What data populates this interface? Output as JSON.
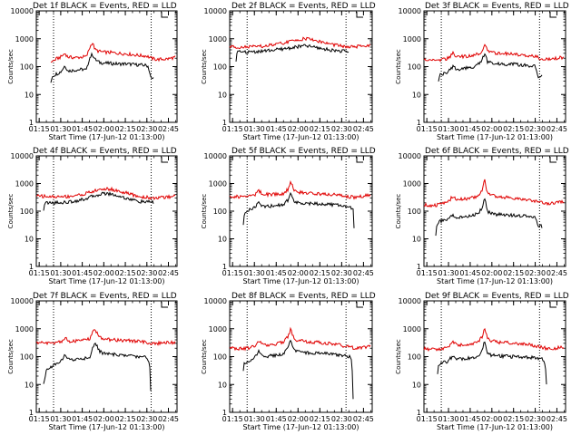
{
  "figure": {
    "panel_axis": {
      "xlabel": "Start Time (17-Jun-12 01:13:00)",
      "ylabel": "Counts/sec",
      "x_tick_labels": [
        "01:15",
        "01:30",
        "01:45",
        "02:00",
        "02:15",
        "02:30",
        "02:45"
      ],
      "y_tick_labels": [
        "1",
        "10",
        "100",
        "1000",
        "10000"
      ]
    },
    "colors": {
      "events": "#000000",
      "lld": "#e00000"
    }
  },
  "chart_data": [
    {
      "type": "line",
      "title": "Det 1f BLACK = Events, RED = LLD",
      "xlabel": "Start Time (17-Jun-12 01:13:00)",
      "ylabel": "Counts/sec",
      "xlim": [
        "01:13",
        "02:51"
      ],
      "ylim": [
        1,
        10000
      ],
      "yscale": "log",
      "vlines": [
        "01:25",
        "02:33"
      ],
      "series": [
        {
          "name": "Events",
          "color": "#000000",
          "x": [
            "01:23",
            "01:24",
            "01:27",
            "01:30",
            "01:33",
            "01:35",
            "01:40",
            "01:45",
            "01:48",
            "01:50",
            "01:52",
            "01:54",
            "01:57",
            "02:00",
            "02:05",
            "02:10",
            "02:15",
            "02:20",
            "02:25",
            "02:30",
            "02:31",
            "02:33",
            "02:35"
          ],
          "y": [
            25,
            45,
            55,
            65,
            110,
            70,
            75,
            80,
            75,
            200,
            280,
            180,
            140,
            135,
            130,
            125,
            125,
            120,
            115,
            110,
            100,
            35,
            40
          ]
        },
        {
          "name": "LLD",
          "color": "#e00000",
          "x": [
            "01:23",
            "01:25",
            "01:27",
            "01:30",
            "01:33",
            "01:35",
            "01:40",
            "01:45",
            "01:48",
            "01:50",
            "01:52",
            "01:54",
            "01:57",
            "02:00",
            "02:05",
            "02:10",
            "02:15",
            "02:20",
            "02:25",
            "02:30",
            "02:33",
            "02:37",
            "02:45",
            "02:50"
          ],
          "y": [
            150,
            160,
            190,
            220,
            300,
            220,
            210,
            220,
            230,
            450,
            750,
            400,
            350,
            330,
            320,
            300,
            290,
            270,
            250,
            240,
            200,
            180,
            190,
            220
          ]
        }
      ]
    },
    {
      "type": "line",
      "title": "Det 2f BLACK = Events, RED = LLD",
      "xlabel": "Start Time (17-Jun-12 01:13:00)",
      "ylabel": "Counts/sec",
      "xlim": [
        "01:13",
        "02:51"
      ],
      "ylim": [
        1,
        10000
      ],
      "yscale": "log",
      "vlines": [
        "01:25",
        "02:33"
      ],
      "series": [
        {
          "name": "Events",
          "color": "#000000",
          "x": [
            "01:17",
            "01:18",
            "01:25",
            "01:35",
            "01:45",
            "01:55",
            "02:00",
            "02:05",
            "02:10",
            "02:20",
            "02:30",
            "02:35"
          ],
          "y": [
            100,
            330,
            330,
            360,
            400,
            470,
            520,
            560,
            510,
            410,
            360,
            350
          ]
        },
        {
          "name": "LLD",
          "color": "#e00000",
          "x": [
            "01:13",
            "01:25",
            "01:35",
            "01:45",
            "01:55",
            "02:00",
            "02:05",
            "02:10",
            "02:20",
            "02:30",
            "02:35",
            "02:45",
            "02:50"
          ],
          "y": [
            520,
            500,
            530,
            620,
            800,
            920,
            1020,
            920,
            680,
            540,
            500,
            540,
            620
          ]
        }
      ]
    },
    {
      "type": "line",
      "title": "Det 3f BLACK = Events, RED = LLD",
      "xlabel": "Start Time (17-Jun-12 01:13:00)",
      "ylabel": "Counts/sec",
      "xlim": [
        "01:13",
        "02:51"
      ],
      "ylim": [
        1,
        10000
      ],
      "yscale": "log",
      "vlines": [
        "01:25",
        "02:33"
      ],
      "series": [
        {
          "name": "Events",
          "color": "#000000",
          "x": [
            "01:23",
            "01:24",
            "01:27",
            "01:30",
            "01:33",
            "01:36",
            "01:40",
            "01:45",
            "01:50",
            "01:53",
            "01:55",
            "01:57",
            "02:00",
            "02:05",
            "02:15",
            "02:25",
            "02:30",
            "02:32",
            "02:35"
          ],
          "y": [
            30,
            50,
            55,
            65,
            100,
            80,
            85,
            90,
            110,
            170,
            300,
            150,
            130,
            125,
            120,
            110,
            100,
            40,
            45
          ]
        },
        {
          "name": "LLD",
          "color": "#e00000",
          "x": [
            "01:13",
            "01:20",
            "01:25",
            "01:30",
            "01:33",
            "01:36",
            "01:40",
            "01:45",
            "01:50",
            "01:53",
            "01:55",
            "01:57",
            "02:00",
            "02:05",
            "02:15",
            "02:25",
            "02:30",
            "02:33",
            "02:40",
            "02:50"
          ],
          "y": [
            180,
            170,
            175,
            200,
            300,
            230,
            230,
            250,
            280,
            350,
            700,
            380,
            320,
            300,
            280,
            250,
            230,
            200,
            180,
            220
          ]
        }
      ]
    },
    {
      "type": "line",
      "title": "Det 4f BLACK = Events, RED = LLD",
      "xlabel": "Start Time (17-Jun-12 01:13:00)",
      "ylabel": "Counts/sec",
      "xlim": [
        "01:13",
        "02:51"
      ],
      "ylim": [
        1,
        10000
      ],
      "yscale": "log",
      "vlines": [
        "01:25",
        "02:33"
      ],
      "series": [
        {
          "name": "Events",
          "color": "#000000",
          "x": [
            "01:18",
            "01:19",
            "01:25",
            "01:35",
            "01:45",
            "01:55",
            "02:00",
            "02:05",
            "02:15",
            "02:25",
            "02:35"
          ],
          "y": [
            110,
            200,
            200,
            210,
            260,
            380,
            440,
            420,
            300,
            220,
            210
          ]
        },
        {
          "name": "LLD",
          "color": "#e00000",
          "x": [
            "01:13",
            "01:20",
            "01:25",
            "01:35",
            "01:45",
            "01:55",
            "02:00",
            "02:05",
            "02:15",
            "02:25",
            "02:35",
            "02:45",
            "02:50"
          ],
          "y": [
            360,
            340,
            330,
            340,
            400,
            560,
            640,
            620,
            460,
            330,
            300,
            320,
            400
          ]
        }
      ]
    },
    {
      "type": "line",
      "title": "Det 5f BLACK = Events, RED = LLD",
      "xlabel": "Start Time (17-Jun-12 01:13:00)",
      "ylabel": "Counts/sec",
      "xlim": [
        "01:13",
        "02:51"
      ],
      "ylim": [
        1,
        10000
      ],
      "yscale": "log",
      "vlines": [
        "01:25",
        "02:33"
      ],
      "series": [
        {
          "name": "Events",
          "color": "#000000",
          "x": [
            "01:22",
            "01:23",
            "01:26",
            "01:30",
            "01:33",
            "01:36",
            "01:40",
            "01:45",
            "01:50",
            "01:53",
            "01:55",
            "01:57",
            "02:00",
            "02:05",
            "02:15",
            "02:25",
            "02:30",
            "02:35",
            "02:38",
            "02:39"
          ],
          "y": [
            25,
            70,
            110,
            140,
            200,
            150,
            150,
            160,
            170,
            250,
            500,
            230,
            200,
            190,
            180,
            170,
            160,
            150,
            120,
            6
          ]
        },
        {
          "name": "LLD",
          "color": "#e00000",
          "x": [
            "01:13",
            "01:20",
            "01:25",
            "01:30",
            "01:33",
            "01:36",
            "01:40",
            "01:45",
            "01:50",
            "01:53",
            "01:55",
            "01:57",
            "02:00",
            "02:05",
            "02:15",
            "02:25",
            "02:30",
            "02:35",
            "02:40",
            "02:50"
          ],
          "y": [
            340,
            330,
            350,
            380,
            560,
            400,
            400,
            410,
            440,
            600,
            1300,
            560,
            480,
            450,
            420,
            390,
            360,
            330,
            320,
            400
          ]
        }
      ]
    },
    {
      "type": "line",
      "title": "Det 6f BLACK = Events, RED = LLD",
      "xlabel": "Start Time (17-Jun-12 01:13:00)",
      "ylabel": "Counts/sec",
      "xlim": [
        "01:13",
        "02:51"
      ],
      "ylim": [
        1,
        10000
      ],
      "yscale": "log",
      "vlines": [
        "01:25",
        "02:33"
      ],
      "series": [
        {
          "name": "Events",
          "color": "#000000",
          "x": [
            "01:21",
            "01:22",
            "01:25",
            "01:30",
            "01:33",
            "01:36",
            "01:40",
            "01:45",
            "01:50",
            "01:53",
            "01:55",
            "01:57",
            "02:00",
            "02:05",
            "02:15",
            "02:25",
            "02:30",
            "02:32",
            "02:35"
          ],
          "y": [
            10,
            35,
            45,
            55,
            70,
            55,
            60,
            70,
            80,
            120,
            300,
            100,
            80,
            75,
            70,
            65,
            60,
            30,
            28
          ]
        },
        {
          "name": "LLD",
          "color": "#e00000",
          "x": [
            "01:13",
            "01:20",
            "01:25",
            "01:30",
            "01:33",
            "01:36",
            "01:40",
            "01:45",
            "01:50",
            "01:53",
            "01:55",
            "01:57",
            "02:00",
            "02:05",
            "02:15",
            "02:25",
            "02:30",
            "02:35",
            "02:40",
            "02:50"
          ],
          "y": [
            170,
            160,
            180,
            220,
            350,
            260,
            270,
            300,
            350,
            500,
            1300,
            450,
            360,
            330,
            300,
            260,
            230,
            200,
            190,
            230
          ]
        }
      ]
    },
    {
      "type": "line",
      "title": "Det 7f BLACK = Events, RED = LLD",
      "xlabel": "Start Time (17-Jun-12 01:13:00)",
      "ylabel": "Counts/sec",
      "xlim": [
        "01:13",
        "02:51"
      ],
      "ylim": [
        1,
        10000
      ],
      "yscale": "log",
      "vlines": [
        "01:25",
        "02:33"
      ],
      "series": [
        {
          "name": "Events",
          "color": "#000000",
          "x": [
            "01:18",
            "01:20",
            "01:23",
            "01:26",
            "01:30",
            "01:33",
            "01:36",
            "01:40",
            "01:45",
            "01:50",
            "01:52",
            "01:54",
            "01:57",
            "02:00",
            "02:05",
            "02:15",
            "02:25",
            "02:30",
            "02:32",
            "02:33"
          ],
          "y": [
            10,
            35,
            40,
            55,
            70,
            110,
            75,
            80,
            85,
            90,
            200,
            300,
            160,
            130,
            120,
            110,
            100,
            95,
            50,
            2
          ]
        },
        {
          "name": "LLD",
          "color": "#e00000",
          "x": [
            "01:13",
            "01:20",
            "01:25",
            "01:30",
            "01:33",
            "01:36",
            "01:40",
            "01:45",
            "01:50",
            "01:52",
            "01:54",
            "01:57",
            "02:00",
            "02:05",
            "02:15",
            "02:25",
            "02:30",
            "02:35",
            "02:40",
            "02:50"
          ],
          "y": [
            320,
            300,
            310,
            340,
            480,
            360,
            360,
            380,
            420,
            700,
            900,
            520,
            430,
            400,
            380,
            350,
            320,
            300,
            300,
            330
          ]
        }
      ]
    },
    {
      "type": "line",
      "title": "Det 8f BLACK = Events, RED = LLD",
      "xlabel": "Start Time (17-Jun-12 01:13:00)",
      "ylabel": "Counts/sec",
      "xlim": [
        "01:13",
        "02:51"
      ],
      "ylim": [
        1,
        10000
      ],
      "yscale": "log",
      "vlines": [
        "01:25",
        "02:33"
      ],
      "series": [
        {
          "name": "Events",
          "color": "#000000",
          "x": [
            "01:22",
            "01:23",
            "01:26",
            "01:30",
            "01:33",
            "01:36",
            "01:40",
            "01:45",
            "01:50",
            "01:53",
            "01:55",
            "01:57",
            "02:00",
            "02:05",
            "02:15",
            "02:25",
            "02:30",
            "02:35",
            "02:37",
            "02:38"
          ],
          "y": [
            20,
            55,
            70,
            90,
            150,
            100,
            105,
            110,
            120,
            200,
            400,
            180,
            150,
            140,
            130,
            120,
            110,
            100,
            80,
            2
          ]
        },
        {
          "name": "LLD",
          "color": "#e00000",
          "x": [
            "01:13",
            "01:20",
            "01:25",
            "01:30",
            "01:33",
            "01:36",
            "01:40",
            "01:45",
            "01:50",
            "01:53",
            "01:55",
            "01:57",
            "02:00",
            "02:05",
            "02:15",
            "02:25",
            "02:30",
            "02:35",
            "02:40",
            "02:50"
          ],
          "y": [
            200,
            190,
            200,
            230,
            350,
            260,
            270,
            290,
            330,
            500,
            1000,
            450,
            380,
            350,
            320,
            280,
            250,
            220,
            200,
            230
          ]
        }
      ]
    },
    {
      "type": "line",
      "title": "Det 9f BLACK = Events, RED = LLD",
      "xlabel": "Start Time (17-Jun-12 01:13:00)",
      "ylabel": "Counts/sec",
      "xlim": [
        "01:13",
        "02:51"
      ],
      "ylim": [
        1,
        10000
      ],
      "yscale": "log",
      "vlines": [
        "01:25",
        "02:33"
      ],
      "series": [
        {
          "name": "Events",
          "color": "#000000",
          "x": [
            "01:22",
            "01:23",
            "01:26",
            "01:30",
            "01:33",
            "01:36",
            "01:40",
            "01:45",
            "01:50",
            "01:53",
            "01:55",
            "01:57",
            "02:00",
            "02:05",
            "02:15",
            "02:25",
            "02:30",
            "02:35",
            "02:37",
            "02:38"
          ],
          "y": [
            15,
            45,
            60,
            70,
            110,
            80,
            85,
            90,
            100,
            150,
            350,
            130,
            110,
            105,
            100,
            95,
            90,
            85,
            50,
            6
          ]
        },
        {
          "name": "LLD",
          "color": "#e00000",
          "x": [
            "01:13",
            "01:20",
            "01:25",
            "01:30",
            "01:33",
            "01:36",
            "01:40",
            "01:45",
            "01:50",
            "01:53",
            "01:55",
            "01:57",
            "02:00",
            "02:05",
            "02:15",
            "02:25",
            "02:30",
            "02:35",
            "02:40",
            "02:50"
          ],
          "y": [
            190,
            180,
            190,
            220,
            330,
            250,
            260,
            280,
            320,
            480,
            1100,
            430,
            360,
            330,
            300,
            270,
            240,
            210,
            190,
            220
          ]
        }
      ]
    }
  ]
}
